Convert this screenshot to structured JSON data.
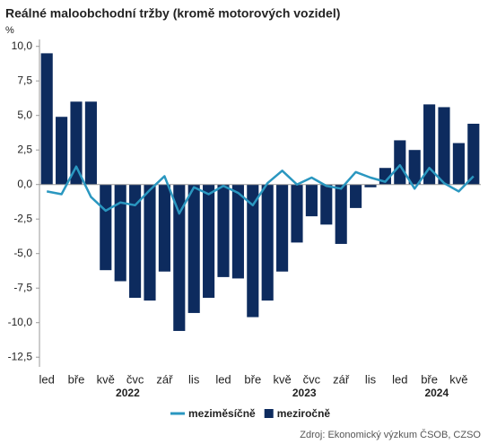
{
  "chart_data": {
    "type": "bar_line",
    "title": "Reálné maloobchodní tržby (kromě motorových vozidel)",
    "y_unit": "%",
    "source": "Zdroj: Ekonomický výzkum ČSOB, CZSO",
    "categories": [
      "led",
      null,
      "bře",
      null,
      "kvě",
      null,
      "čvc",
      null,
      "zář",
      null,
      "lis",
      null,
      "led",
      null,
      "bře",
      null,
      "kvě",
      null,
      "čvc",
      null,
      "zář",
      null,
      "lis",
      null,
      "led",
      null,
      "bře",
      null,
      "kvě",
      null
    ],
    "year_labels": [
      "2022",
      "2023",
      "2024"
    ],
    "series": [
      {
        "name": "meziměsíčně",
        "kind": "line",
        "color": "#2a97c0",
        "values": [
          -0.5,
          -0.7,
          1.3,
          -0.9,
          -1.9,
          -1.3,
          -1.5,
          -0.4,
          0.6,
          -2.1,
          -0.2,
          -0.7,
          -0.1,
          -0.6,
          -1.5,
          0.1,
          1.0,
          0.0,
          0.5,
          -0.1,
          -0.3,
          0.9,
          0.5,
          0.2,
          1.4,
          -0.3,
          1.2,
          0.1,
          -0.5,
          0.6
        ]
      },
      {
        "name": "meziročně",
        "kind": "bar",
        "color": "#0d2b5e",
        "values": [
          9.5,
          4.9,
          6.0,
          6.0,
          -6.2,
          -7.0,
          -8.2,
          -8.4,
          -6.3,
          -10.6,
          -9.3,
          -8.2,
          -6.7,
          -6.8,
          -9.6,
          -8.4,
          -6.3,
          -4.2,
          -2.3,
          -2.9,
          -4.3,
          -1.7,
          -0.2,
          1.2,
          3.2,
          2.5,
          5.8,
          5.6,
          3.0,
          4.4
        ]
      }
    ],
    "ylim": [
      -13.2,
      10.5
    ],
    "yticks": [
      {
        "value": 10,
        "label": "10,0"
      },
      {
        "value": 7.5,
        "label": "7,5"
      },
      {
        "value": 5,
        "label": "5,0"
      },
      {
        "value": 2.5,
        "label": "2,5"
      },
      {
        "value": 0,
        "label": "0,0"
      },
      {
        "value": -2.5,
        "label": "-2,5"
      },
      {
        "value": -5,
        "label": "-5,0"
      },
      {
        "value": -7.5,
        "label": "-7,5"
      },
      {
        "value": -10,
        "label": "-10,0"
      },
      {
        "value": -12.5,
        "label": "-12,5"
      }
    ],
    "grid": false
  }
}
